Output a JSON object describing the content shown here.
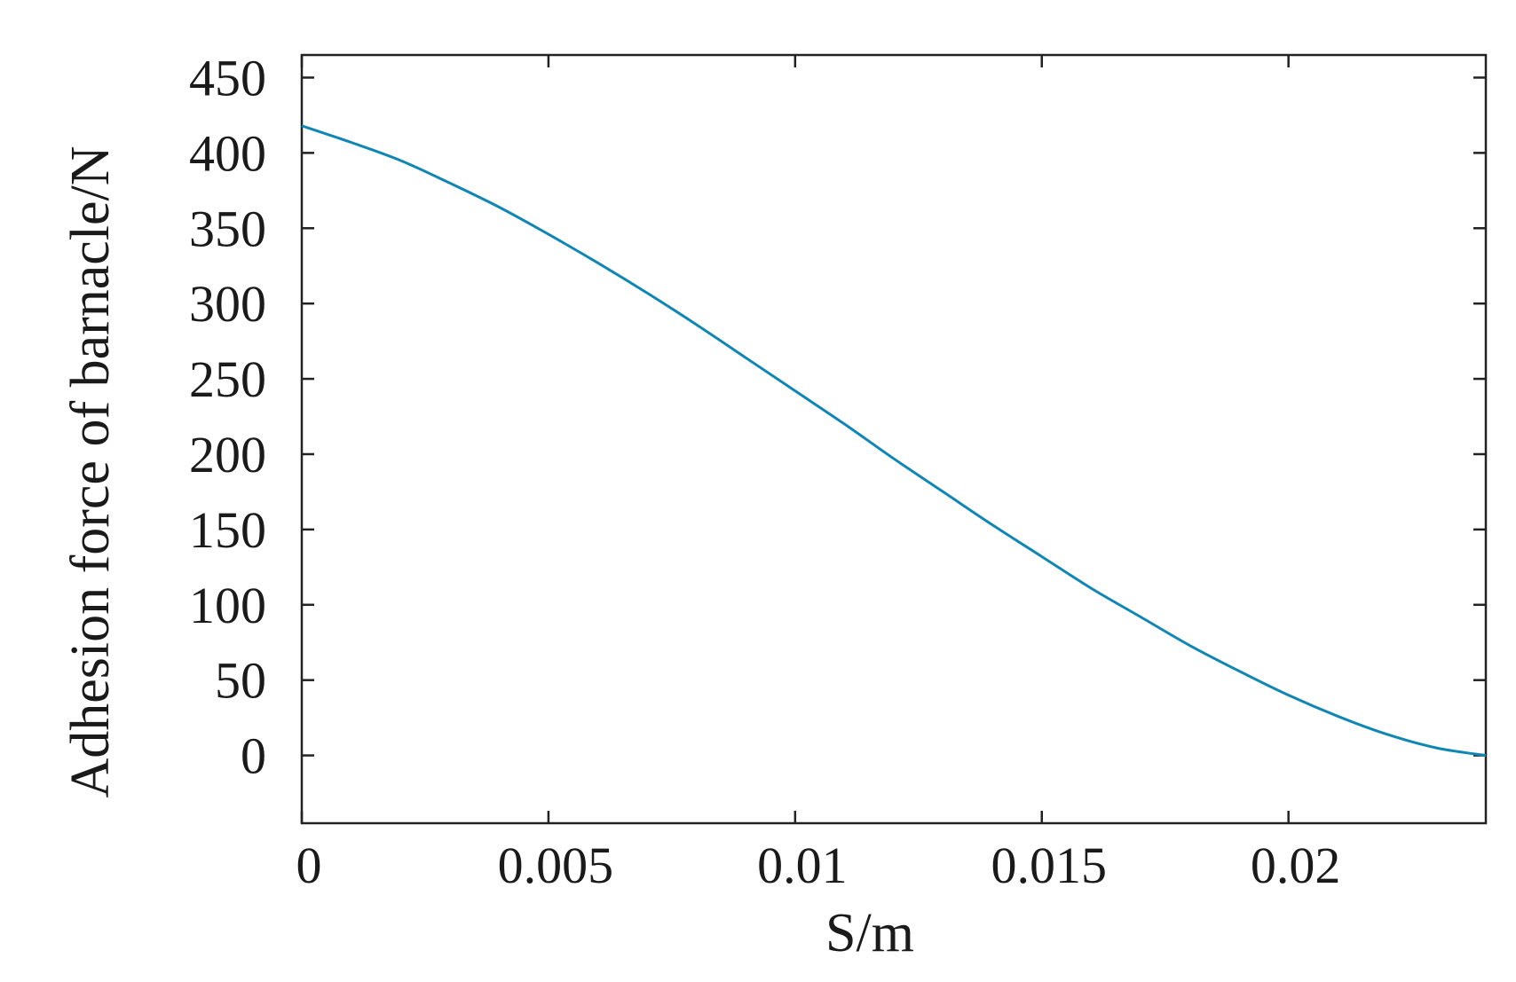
{
  "chart_data": {
    "type": "line",
    "title": "",
    "xlabel": "S/m",
    "ylabel": "Adhesion force of  barnacle/N",
    "xlim": [
      0,
      0.024
    ],
    "ylim": [
      -45,
      465
    ],
    "grid": false,
    "x_ticks": [
      0,
      0.005,
      0.01,
      0.015,
      0.02
    ],
    "x_tick_labels": [
      "0",
      "0.005",
      "0.01",
      "0.015",
      "0.02"
    ],
    "y_ticks": [
      0,
      50,
      100,
      150,
      200,
      250,
      300,
      350,
      400,
      450
    ],
    "y_tick_labels": [
      "0",
      "50",
      "100",
      "150",
      "200",
      "250",
      "300",
      "350",
      "400",
      "450"
    ],
    "line_color": "#0f86b4",
    "series": [
      {
        "x": [
          0,
          0.001,
          0.002,
          0.003,
          0.004,
          0.005,
          0.006,
          0.007,
          0.008,
          0.009,
          0.01,
          0.011,
          0.012,
          0.013,
          0.014,
          0.015,
          0.016,
          0.017,
          0.018,
          0.019,
          0.02,
          0.021,
          0.022,
          0.023,
          0.024
        ],
        "y": [
          418,
          407,
          395,
          380,
          364,
          346,
          327,
          307,
          286,
          264,
          242,
          220,
          197,
          175,
          153,
          132,
          111,
          92,
          73,
          56,
          40,
          26,
          14,
          5,
          0
        ]
      }
    ]
  }
}
